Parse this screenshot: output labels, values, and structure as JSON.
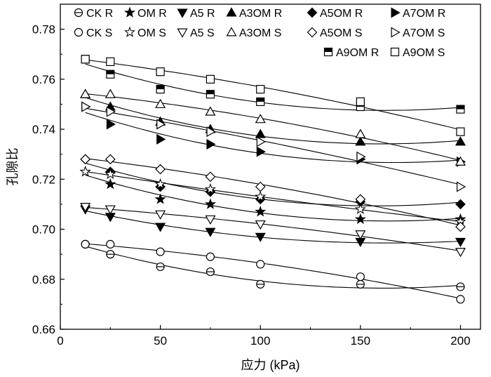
{
  "chart_data": {
    "type": "scatter",
    "title": "",
    "xlabel": "应力 (kPa)",
    "ylabel": "孔隙比",
    "xlim": [
      0,
      210
    ],
    "ylim": [
      0.66,
      0.79
    ],
    "xticks": [
      "0",
      "50",
      "100",
      "150",
      "200"
    ],
    "yticks": [
      "0.66",
      "0.68",
      "0.70",
      "0.72",
      "0.74",
      "0.76",
      "0.78"
    ],
    "x": [
      12.5,
      25,
      50,
      75,
      100,
      150,
      200
    ],
    "grid": false,
    "legend_position": "top-right",
    "series": [
      {
        "name": "CK R",
        "marker": "circle-half",
        "values": [
          0.694,
          0.69,
          0.685,
          0.683,
          0.678,
          0.678,
          0.677
        ]
      },
      {
        "name": "OM R",
        "marker": "star-filled",
        "values": [
          0.723,
          0.718,
          0.712,
          0.71,
          0.707,
          0.704,
          0.704
        ]
      },
      {
        "name": "A5 R",
        "marker": "tri-down-filled",
        "values": [
          0.708,
          0.705,
          0.701,
          0.699,
          0.697,
          0.695,
          0.695
        ]
      },
      {
        "name": "A3OM R",
        "marker": "tri-up-filled",
        "values": [
          0.754,
          0.749,
          0.743,
          0.74,
          0.738,
          0.735,
          0.735
        ]
      },
      {
        "name": "A5OM R",
        "marker": "diamond-filled",
        "values": [
          0.728,
          0.723,
          0.717,
          0.715,
          0.712,
          0.711,
          0.71
        ]
      },
      {
        "name": "A7OM R",
        "marker": "tri-right-filled",
        "values": [
          0.749,
          0.742,
          0.736,
          0.734,
          0.731,
          0.728,
          0.727
        ]
      },
      {
        "name": "A9OM R",
        "marker": "square-half",
        "values": [
          0.768,
          0.762,
          0.756,
          0.754,
          0.751,
          0.749,
          0.748
        ]
      },
      {
        "name": "CK S",
        "marker": "circle-open",
        "values": [
          0.694,
          0.694,
          0.691,
          0.689,
          0.686,
          0.681,
          0.672
        ]
      },
      {
        "name": "OM S",
        "marker": "star-open",
        "values": [
          0.723,
          0.722,
          0.718,
          0.716,
          0.713,
          0.708,
          0.703
        ]
      },
      {
        "name": "A5 S",
        "marker": "tri-down-open",
        "values": [
          0.709,
          0.708,
          0.706,
          0.704,
          0.702,
          0.698,
          0.691
        ]
      },
      {
        "name": "A3OM S",
        "marker": "tri-up-open",
        "values": [
          0.754,
          0.754,
          0.75,
          0.747,
          0.744,
          0.738,
          0.727
        ]
      },
      {
        "name": "A5OM S",
        "marker": "diamond-open",
        "values": [
          0.728,
          0.728,
          0.724,
          0.721,
          0.717,
          0.712,
          0.701
        ]
      },
      {
        "name": "A7OM S",
        "marker": "tri-right-open",
        "values": [
          0.749,
          0.747,
          0.742,
          0.739,
          0.735,
          0.729,
          0.717
        ]
      },
      {
        "name": "A9OM S",
        "marker": "square-open",
        "values": [
          0.768,
          0.767,
          0.763,
          0.76,
          0.756,
          0.751,
          0.739
        ]
      }
    ]
  }
}
